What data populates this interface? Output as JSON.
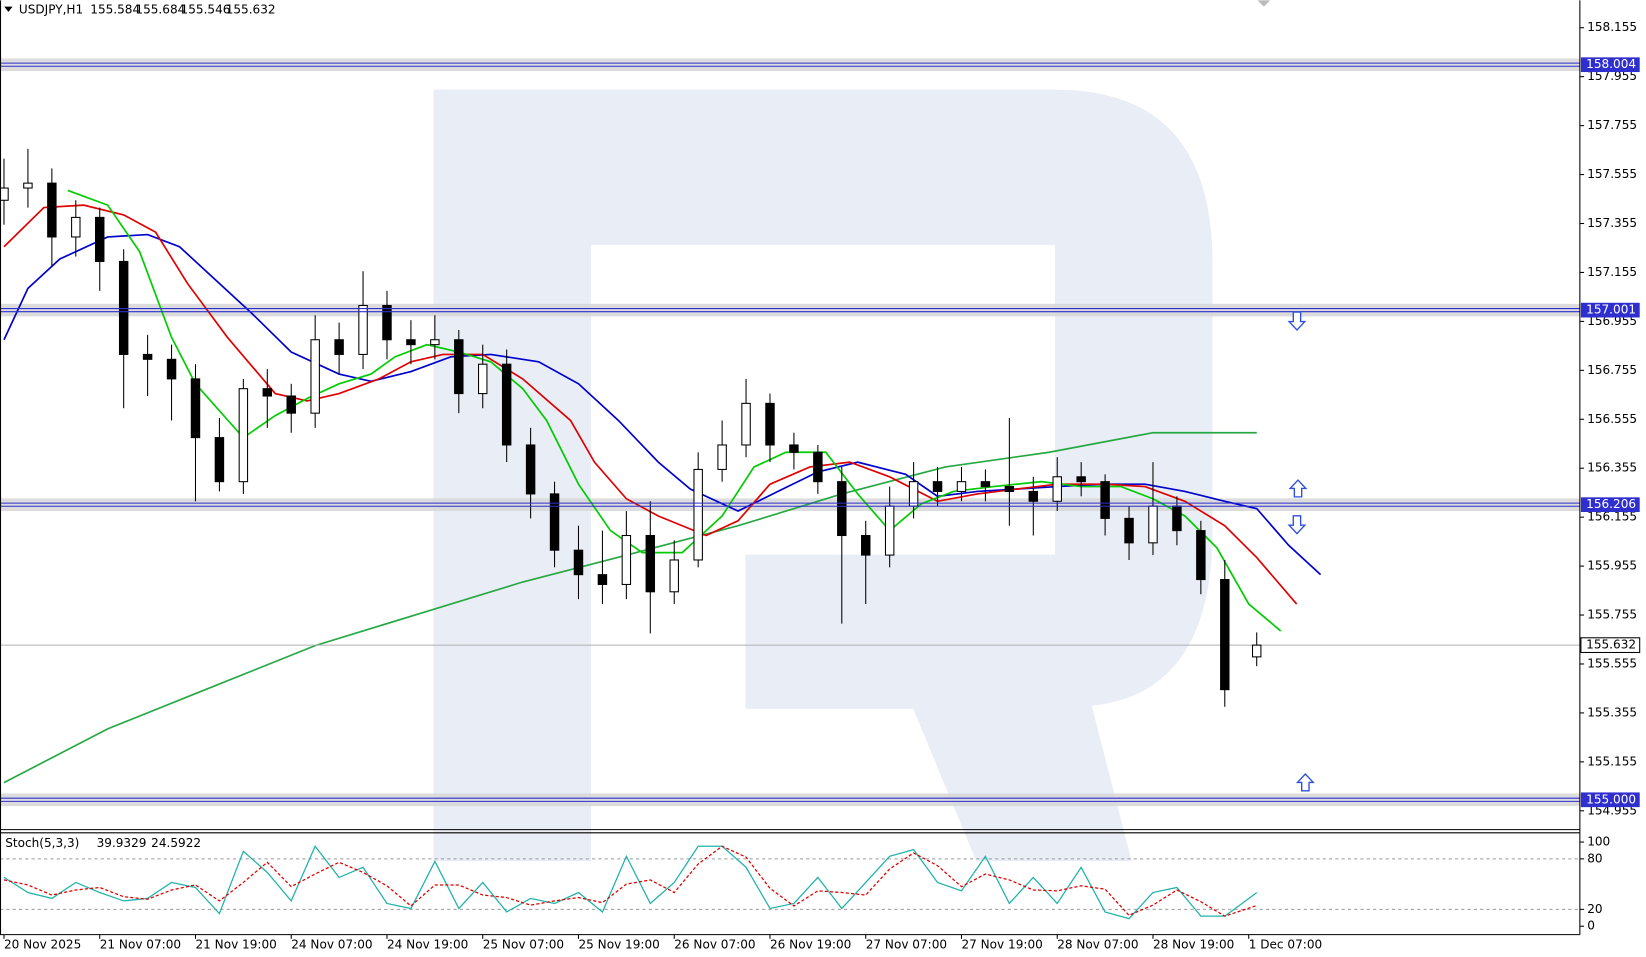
{
  "chart_data": [
    {
      "type": "candlestick",
      "symbol": "USDJPY,H1",
      "prices": [
        "155.584",
        "155.684",
        "155.546",
        "155.632"
      ],
      "x": [
        0,
        3,
        6,
        9,
        12,
        15,
        18,
        21,
        24,
        27,
        30,
        33,
        36,
        39,
        42,
        45,
        48,
        51,
        54,
        57,
        60,
        63,
        66,
        69,
        72,
        75,
        78,
        81,
        84,
        87,
        90,
        93,
        96,
        99,
        102,
        105,
        108,
        111,
        114,
        117,
        120,
        123,
        126,
        129,
        132,
        135,
        138,
        141,
        144,
        147,
        150,
        153,
        157
      ],
      "open": [
        157.45,
        157.5,
        157.52,
        157.3,
        157.38,
        157.2,
        156.82,
        156.8,
        156.72,
        156.48,
        156.3,
        156.68,
        156.65,
        156.58,
        156.88,
        156.82,
        157.02,
        156.88,
        156.86,
        156.88,
        156.66,
        156.78,
        156.45,
        156.25,
        156.02,
        155.92,
        155.88,
        156.08,
        155.85,
        155.98,
        156.35,
        156.45,
        156.62,
        156.45,
        156.42,
        156.3,
        156.08,
        156.0,
        156.2,
        156.3,
        156.26,
        156.3,
        156.28,
        156.26,
        156.22,
        156.32,
        156.3,
        156.15,
        156.05,
        156.2,
        156.1,
        155.9,
        155.584
      ],
      "high": [
        157.62,
        157.66,
        157.58,
        157.45,
        157.42,
        157.25,
        156.9,
        156.86,
        156.78,
        156.56,
        156.72,
        156.76,
        156.7,
        156.98,
        156.95,
        157.16,
        157.08,
        156.96,
        156.98,
        156.92,
        156.86,
        156.84,
        156.52,
        156.3,
        156.12,
        156.1,
        156.18,
        156.22,
        156.06,
        156.42,
        156.55,
        156.72,
        156.66,
        156.5,
        156.45,
        156.36,
        156.14,
        156.28,
        156.38,
        156.36,
        156.36,
        156.35,
        156.56,
        156.32,
        156.4,
        156.38,
        156.33,
        156.2,
        156.38,
        156.24,
        156.14,
        155.98,
        155.684
      ],
      "low": [
        157.35,
        157.42,
        157.18,
        157.22,
        157.08,
        156.6,
        156.65,
        156.55,
        156.22,
        156.26,
        156.25,
        156.52,
        156.5,
        156.52,
        156.74,
        156.76,
        156.8,
        156.78,
        156.8,
        156.58,
        156.6,
        156.38,
        156.15,
        155.95,
        155.82,
        155.8,
        155.82,
        155.68,
        155.8,
        155.95,
        156.3,
        156.4,
        156.38,
        156.35,
        156.25,
        155.72,
        155.8,
        155.95,
        156.15,
        156.2,
        156.22,
        156.22,
        156.12,
        156.08,
        156.18,
        156.24,
        156.08,
        155.98,
        156.0,
        156.04,
        155.84,
        155.38,
        155.546
      ],
      "close": [
        157.5,
        157.52,
        157.3,
        157.38,
        157.2,
        156.82,
        156.8,
        156.72,
        156.48,
        156.3,
        156.68,
        156.65,
        156.58,
        156.88,
        156.82,
        157.02,
        156.88,
        156.86,
        156.88,
        156.66,
        156.78,
        156.45,
        156.25,
        156.02,
        155.92,
        155.88,
        156.08,
        155.85,
        155.98,
        156.35,
        156.45,
        156.62,
        156.45,
        156.42,
        156.3,
        156.08,
        156.0,
        156.2,
        156.3,
        156.26,
        156.3,
        156.28,
        156.26,
        156.22,
        156.32,
        156.3,
        156.15,
        156.05,
        156.2,
        156.1,
        155.9,
        155.45,
        155.632
      ],
      "up_color": "#ffffff",
      "down_color": "#000000",
      "series": [
        {
          "color": "#27a844",
          "x": [
            0,
            13,
            26,
            39,
            52,
            65,
            78,
            92,
            105,
            118,
            131,
            144,
            157
          ],
          "values": [
            155.07,
            155.29,
            155.46,
            155.63,
            155.76,
            155.89,
            156.0,
            156.12,
            156.25,
            156.36,
            156.42,
            156.5,
            156.5
          ]
        },
        {
          "color": "#0000cc",
          "x": [
            0,
            3,
            7,
            13,
            18,
            22,
            26,
            31,
            36,
            42,
            46,
            51,
            56,
            61,
            67,
            72,
            77,
            82,
            86,
            92,
            97,
            102,
            107,
            113,
            117,
            122,
            127,
            132,
            138,
            143,
            148,
            153,
            157,
            161,
            165
          ],
          "values": [
            156.88,
            157.09,
            157.21,
            157.3,
            157.31,
            157.26,
            157.14,
            156.99,
            156.83,
            156.74,
            156.71,
            156.75,
            156.81,
            156.82,
            156.79,
            156.7,
            156.55,
            156.38,
            156.27,
            156.18,
            156.26,
            156.34,
            156.38,
            156.33,
            156.24,
            156.26,
            156.27,
            156.28,
            156.29,
            156.29,
            156.26,
            156.22,
            156.19,
            156.04,
            155.92
          ]
        },
        {
          "color": "#e00000",
          "x": [
            0,
            5,
            10,
            15,
            19,
            23,
            28,
            34,
            38,
            42,
            47,
            51,
            55,
            60,
            65,
            71,
            74,
            78,
            82,
            88,
            92,
            96,
            101,
            106,
            111,
            117,
            122,
            127,
            132,
            138,
            143,
            148,
            153,
            157,
            162
          ],
          "values": [
            157.26,
            157.42,
            157.43,
            157.39,
            157.32,
            157.11,
            156.89,
            156.66,
            156.63,
            156.66,
            156.72,
            156.79,
            156.82,
            156.82,
            156.72,
            156.55,
            156.38,
            156.23,
            156.16,
            156.08,
            156.14,
            156.29,
            156.36,
            156.38,
            156.32,
            156.22,
            156.25,
            156.27,
            156.29,
            156.29,
            156.28,
            156.22,
            156.12,
            155.99,
            155.8
          ]
        },
        {
          "color": "#00cc00",
          "x": [
            8,
            13,
            17,
            21,
            24,
            30,
            34,
            38,
            42,
            46,
            49,
            53,
            57,
            61,
            65,
            68,
            72,
            76,
            80,
            85,
            90,
            94,
            98,
            103,
            107,
            111,
            115,
            119,
            124,
            130,
            135,
            140,
            144,
            148,
            152,
            156,
            160
          ],
          "values": [
            157.49,
            157.43,
            157.24,
            156.89,
            156.7,
            156.48,
            156.57,
            156.64,
            156.7,
            156.74,
            156.81,
            156.86,
            156.83,
            156.79,
            156.68,
            156.55,
            156.29,
            156.1,
            156.01,
            156.01,
            156.16,
            156.36,
            156.42,
            156.42,
            156.25,
            156.1,
            156.21,
            156.26,
            156.28,
            156.3,
            156.28,
            156.28,
            156.23,
            156.16,
            156.03,
            155.8,
            155.69
          ]
        }
      ],
      "levels": [
        158.004,
        157.001,
        156.206,
        {
          "value": 155,
          "label": "155.000"
        }
      ],
      "level_color": "#2f2fd0",
      "current_price": 155.632,
      "xlim": [
        -0.5,
        197.5
      ],
      "xticks": [
        {
          "value": 0,
          "label": "20 Nov 2025"
        },
        {
          "value": 12,
          "label": "21 Nov 07:00"
        },
        {
          "value": 24,
          "label": "21 Nov 19:00"
        },
        {
          "value": 36,
          "label": "24 Nov 07:00"
        },
        {
          "value": 48,
          "label": "24 Nov 19:00"
        },
        {
          "value": 60,
          "label": "25 Nov 07:00"
        },
        {
          "value": 72,
          "label": "25 Nov 19:00"
        },
        {
          "value": 84,
          "label": "26 Nov 07:00"
        },
        {
          "value": 96,
          "label": "26 Nov 19:00"
        },
        {
          "value": 108,
          "label": "27 Nov 07:00"
        },
        {
          "value": 120,
          "label": "27 Nov 19:00"
        },
        {
          "value": 132,
          "label": "28 Nov 07:00"
        },
        {
          "value": 144,
          "label": "28 Nov 19:00"
        },
        {
          "value": 156,
          "label": "1 Dec 07:00"
        }
      ],
      "ylim": [
        154.878,
        158.267
      ],
      "yticks": [
        154.955,
        155.155,
        155.355,
        155.555,
        155.755,
        155.955,
        156.155,
        156.355,
        156.555,
        156.755,
        156.955,
        157.155,
        157.355,
        157.555,
        157.755,
        157.955,
        158.155
      ]
    },
    {
      "type": "line",
      "title": "Stoch(5,3,3)",
      "readouts": [
        "39.9329",
        "24.5922"
      ],
      "x": [
        0,
        3,
        6,
        9,
        12,
        15,
        18,
        21,
        24,
        27,
        30,
        33,
        36,
        39,
        42,
        45,
        48,
        51,
        54,
        57,
        60,
        63,
        66,
        69,
        72,
        75,
        78,
        81,
        84,
        87,
        90,
        93,
        96,
        99,
        102,
        105,
        108,
        111,
        114,
        117,
        120,
        123,
        126,
        129,
        132,
        135,
        138,
        141,
        144,
        147,
        150,
        153,
        157
      ],
      "series": [
        {
          "color": "#20b2aa",
          "style": "solid",
          "values": [
            58,
            40,
            33,
            52,
            40,
            30,
            33,
            52,
            46,
            15,
            89,
            64,
            30,
            95,
            58,
            70,
            27,
            21,
            77,
            21,
            52,
            17,
            33,
            27,
            40,
            17,
            83,
            27,
            52,
            95,
            95,
            70,
            21,
            27,
            58,
            21,
            52,
            83,
            91,
            52,
            42,
            83,
            27,
            58,
            27,
            70,
            17,
            9,
            40,
            46,
            12,
            12,
            39.9329
          ]
        },
        {
          "color": "#e00000",
          "style": "dashed",
          "values": [
            55,
            49,
            37,
            43,
            46,
            35,
            32,
            43,
            49,
            30,
            52,
            76,
            47,
            62,
            76,
            64,
            48,
            24,
            49,
            49,
            37,
            34,
            25,
            30,
            34,
            28,
            50,
            55,
            40,
            74,
            95,
            82,
            45,
            24,
            42,
            40,
            37,
            68,
            87,
            72,
            47,
            62,
            55,
            43,
            42,
            48,
            44,
            13,
            25,
            43,
            29,
            12,
            24.5922
          ]
        }
      ],
      "ylim": [
        -10,
        111
      ],
      "yticks": [
        0,
        20,
        80,
        100
      ],
      "guides": [
        20,
        80
      ]
    }
  ]
}
